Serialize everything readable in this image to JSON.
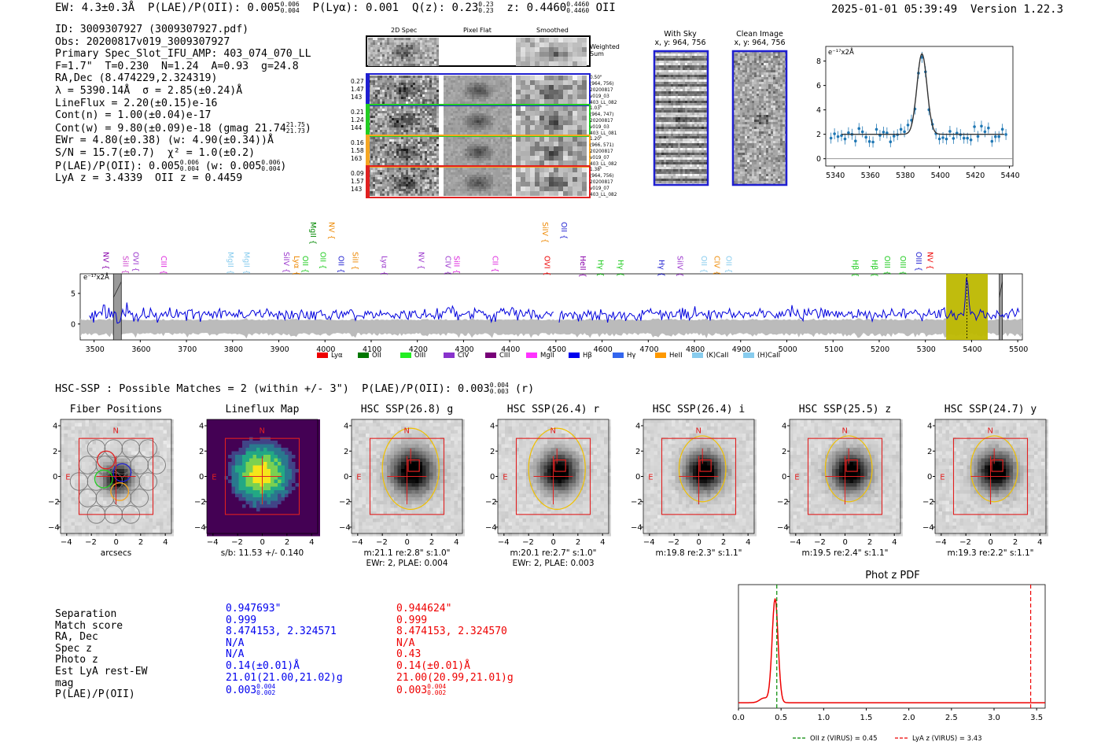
{
  "header": {
    "line": "EW: 4.3±0.3Å  P(LAE)/P(OII): 0.005",
    "plae_up": "0.006",
    "plae_dn": "0.004",
    "line2": "  P(Lyα): 0.001  Q(z): 0.23",
    "qz_up": "0.23",
    "qz_dn": "0.23",
    "line3": "  z: 0.4460",
    "z_up": "0.4460",
    "z_dn": "0.4460",
    "line4": " OII",
    "timestamp": "2025-01-01 05:39:49  Version 1.22.3"
  },
  "info": {
    "id": "ID: 3009307927 (3009307927.pdf)",
    "obs": "Obs: 20200817v019_3009307927",
    "primary": "Primary Spec_Slot_IFU_AMP: 403_074_070_LL",
    "fwhm": "F=1.7\"  T=0.230  N=1.24  A=0.93  g=24.8",
    "radec": "RA,Dec (8.474229,2.324319)",
    "lambda": "λ = 5390.14Å  σ = 2.85(±0.24)Å",
    "lineflux": "LineFlux = 2.20(±0.15)e-16",
    "contn": "Cont(n) = 1.00(±0.04)e-17",
    "contw": "Cont(w) = 9.80(±0.09)e-18 (gmag 21.74",
    "gmag_up": "21.75",
    "gmag_dn": "21.73",
    "contw_end": ")",
    "ewr": "EWr = 4.80(±0.38) (w: 4.90(±0.34))Å",
    "sn": "S/N = 15.7(±0.7)  χ² = 1.0(±0.2)",
    "plae": "P(LAE)/P(OII): 0.005",
    "plae_up": "0.006",
    "plae_dn": "0.004",
    "plae_w": " (w: 0.005",
    "plae_w_up": "0.006",
    "plae_w_dn": "0.004",
    "plae_end": ")",
    "lyaz": "LyA z = 3.4339  OII z = 0.4459"
  },
  "cutouts": {
    "col_titles": [
      "2D Spec",
      "Pixel Flat",
      "Smoothed"
    ],
    "weighted": "Weighted Sum",
    "rows": [
      {
        "left": [
          "0.27",
          "1.47",
          "143"
        ],
        "right": [
          "0.50\"",
          "(964, 756)",
          "20200817",
          "v019_03",
          "403_LL_082"
        ],
        "color": "#1f1fd0"
      },
      {
        "left": [
          "0.21",
          "1.24",
          "144"
        ],
        "right": [
          "1.03\"",
          "(964, 747)",
          "20200817",
          "v019_03",
          "403_LL_081"
        ],
        "color": "#22cc22"
      },
      {
        "left": [
          "0.16",
          "1.58",
          "163"
        ],
        "right": [
          "1.20\"",
          "(966, 571)",
          "20200817",
          "v019_07",
          "403_LL_082"
        ],
        "color": "#f5a623"
      },
      {
        "left": [
          "0.09",
          "1.57",
          "143"
        ],
        "right": [
          "1.38\"",
          "(964, 756)",
          "20200817",
          "v019_07",
          "403_LL_082"
        ],
        "color": "#e02020"
      }
    ]
  },
  "sky": {
    "with_sky": "With Sky",
    "with_sky_xy": "x, y: 964, 756",
    "clean": "Clean Image",
    "clean_xy": "x, y: 964, 756"
  },
  "zoom_plot": {
    "ylabel": "e⁻¹⁷x2Å",
    "xticks": [
      "5340",
      "5360",
      "5380",
      "5400",
      "5420",
      "5440"
    ],
    "yticks": [
      "0",
      "2",
      "4",
      "6",
      "8"
    ]
  },
  "full_spec": {
    "ylabel": "e⁻¹⁷x2Å",
    "xticks": [
      "3500",
      "3600",
      "3700",
      "3800",
      "3900",
      "4000",
      "4100",
      "4200",
      "4300",
      "4400",
      "4500",
      "4600",
      "4700",
      "4800",
      "4900",
      "5000",
      "5100",
      "5200",
      "5300",
      "5400",
      "5500"
    ],
    "yticks": [
      "0",
      "5"
    ],
    "line_labels": [
      {
        "t": "NV",
        "c": "#8800aa"
      },
      {
        "t": "SiII",
        "c": "#cc44cc"
      },
      {
        "t": "OVI",
        "c": "#9933cc"
      },
      {
        "t": "CIII",
        "c": "#dd22dd"
      },
      {
        "t": "MgII",
        "c": "#88ccee"
      },
      {
        "t": "MgII",
        "c": "#88ccee"
      },
      {
        "t": "SiIV",
        "c": "#9933cc"
      },
      {
        "t": "Lyα",
        "c": "#ee8800"
      },
      {
        "t": "OII",
        "c": "#22cc22"
      },
      {
        "t": "MgII",
        "c": "#008800"
      },
      {
        "t": "OII",
        "c": "#22cc22"
      },
      {
        "t": "NV",
        "c": "#ee8800"
      },
      {
        "t": "OII",
        "c": "#1f1fd0"
      },
      {
        "t": "SiII",
        "c": "#ee8800"
      },
      {
        "t": "Lyα",
        "c": "#9933cc"
      },
      {
        "t": "NV",
        "c": "#9933cc"
      },
      {
        "t": "CIV",
        "c": "#9933cc"
      },
      {
        "t": "SiII",
        "c": "#dd22dd"
      },
      {
        "t": "CII",
        "c": "#dd22dd"
      },
      {
        "t": "SiIV",
        "c": "#ee8800"
      },
      {
        "t": "OVI",
        "c": "#ee0000"
      },
      {
        "t": "OII",
        "c": "#1f1fd0"
      },
      {
        "t": "HeII",
        "c": "#8800aa"
      },
      {
        "t": "Hγ",
        "c": "#22cc22"
      },
      {
        "t": "Hγ",
        "c": "#22cc22"
      },
      {
        "t": "Hγ",
        "c": "#1f1fd0"
      },
      {
        "t": "SiIV",
        "c": "#9933cc"
      },
      {
        "t": "OII",
        "c": "#88ccee"
      },
      {
        "t": "CIV",
        "c": "#ee8800"
      },
      {
        "t": "OII",
        "c": "#88ccee"
      },
      {
        "t": "Hβ",
        "c": "#22cc22"
      },
      {
        "t": "Hβ",
        "c": "#22cc22"
      },
      {
        "t": "OIII",
        "c": "#22cc22"
      },
      {
        "t": "OIII",
        "c": "#22cc22"
      },
      {
        "t": "OIII",
        "c": "#1f1fd0"
      },
      {
        "t": "NV",
        "c": "#ee0000"
      }
    ],
    "legend": [
      {
        "t": "Lyα",
        "c": "#ee0000"
      },
      {
        "t": "OII",
        "c": "#007700"
      },
      {
        "t": "OIII",
        "c": "#22ee22"
      },
      {
        "t": "CIV",
        "c": "#8833cc"
      },
      {
        "t": "CIII",
        "c": "#770077"
      },
      {
        "t": "MgII",
        "c": "#ff33ff"
      },
      {
        "t": "Hβ",
        "c": "#0000ee"
      },
      {
        "t": "Hγ",
        "c": "#3366ee"
      },
      {
        "t": "HeII",
        "c": "#ff9900"
      },
      {
        "t": "(K)CaII",
        "c": "#88ccee"
      },
      {
        "t": "(H)CaII",
        "c": "#88ccee"
      }
    ]
  },
  "hsc": {
    "summary": "HSC-SSP : Possible Matches = 2 (within +/- 3\")  P(LAE)/P(OII): 0.003",
    "sum_up": "0.004",
    "sum_dn": "0.003",
    "sum_end": " (r)",
    "panels": [
      {
        "title": "Fiber Positions",
        "cap1": "arcsecs",
        "cap2": ""
      },
      {
        "title": "Lineflux Map",
        "cap1": "s/b: 11.53 +/- 0.140",
        "cap2": ""
      },
      {
        "title": "HSC SSP(26.8) g",
        "cap1": "m:21.1  re:2.8\"  s:1.0\"",
        "cap2": "EWr: 2, PLAE: 0.004"
      },
      {
        "title": "HSC SSP(26.4) r",
        "cap1": "m:20.1  re:2.7\"  s:1.0\"",
        "cap2": "EWr: 2, PLAE: 0.003"
      },
      {
        "title": "HSC SSP(26.4) i",
        "cap1": "m:19.8  re:2.3\"  s:1.1\"",
        "cap2": ""
      },
      {
        "title": "HSC SSP(25.5) z",
        "cap1": "m:19.5  re:2.4\"  s:1.1\"",
        "cap2": ""
      },
      {
        "title": "HSC SSP(24.7) y",
        "cap1": "m:19.3  re:2.2\"  s:1.1\"",
        "cap2": ""
      }
    ],
    "xticks": [
      "−4",
      "−2",
      "0",
      "2",
      "4"
    ],
    "yticks": [
      "4",
      "2",
      "0",
      "−2",
      "−4"
    ],
    "N": "N",
    "E": "E"
  },
  "matches": {
    "labels": [
      "Separation",
      "Match score",
      "RA, Dec",
      "Spec z",
      "Photo z",
      "Est LyA rest-EW",
      "mag",
      "P(LAE)/P(OII)"
    ],
    "blue": [
      "0.947693\"",
      "0.999",
      "8.474153, 2.324571",
      "N/A",
      "N/A",
      "0.14(±0.01)Å",
      "21.01(21.00,21.02)g",
      "0.003"
    ],
    "blue_up": "0.004",
    "blue_dn": "0.002",
    "red": [
      "0.944624\"",
      "0.999",
      "8.474153, 2.324570",
      "N/A",
      "0.43",
      "0.14(±0.01)Å",
      "21.00(20.99,21.01)g",
      "0.003"
    ],
    "red_up": "0.004",
    "red_dn": "0.002"
  },
  "photz": {
    "title": "Phot z PDF",
    "xticks": [
      "0.0",
      "0.5",
      "1.0",
      "1.5",
      "2.0",
      "2.5",
      "3.0",
      "3.5"
    ],
    "legend_oii": "OII z (VIRUS) = 0.45",
    "legend_lya": "LyA z (VIRUS) = 3.43",
    "oii_z": 0.45,
    "lya_z": 3.43
  }
}
